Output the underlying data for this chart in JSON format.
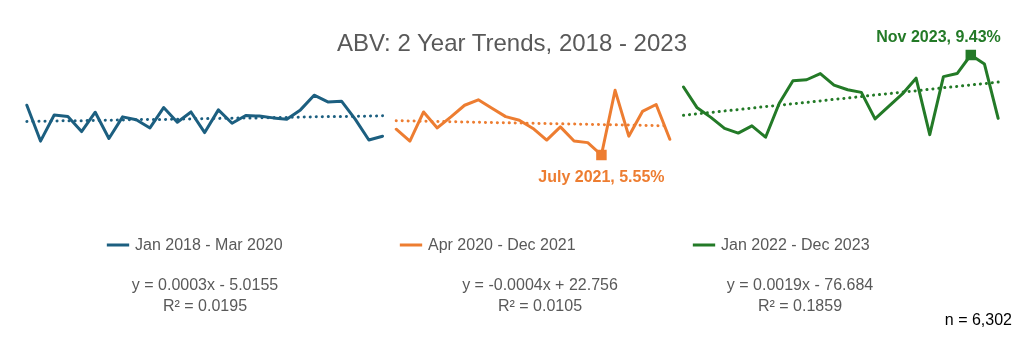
{
  "chart_data": {
    "type": "line",
    "title": "ABV: 2 Year Trends, 2018 - 2023",
    "categories": [
      null,
      null,
      null,
      null,
      null,
      null,
      null,
      null,
      null,
      null,
      null,
      null,
      null,
      null,
      null,
      null,
      null,
      null,
      null,
      null,
      null,
      null,
      null,
      null,
      null,
      null,
      null,
      null,
      null,
      null,
      null,
      null,
      null,
      null,
      null,
      null,
      null,
      null,
      null,
      null,
      null,
      null,
      null,
      null,
      null,
      null,
      null,
      null,
      null,
      null,
      null,
      null,
      null,
      null,
      null,
      null,
      null,
      null,
      null,
      null,
      null,
      null,
      null,
      null,
      null,
      null,
      null,
      null,
      null,
      null,
      null,
      null
    ],
    "series": [
      {
        "name": "Jan 2018 - Mar 2020",
        "color": "#1c5f80",
        "values": [
          7.48,
          6.09,
          7.1,
          7.04,
          6.46,
          7.21,
          6.19,
          7.03,
          6.92,
          6.6,
          7.39,
          6.82,
          7.22,
          6.42,
          7.3,
          6.78,
          7.08,
          7.06,
          6.99,
          6.94,
          7.3,
          7.87,
          7.61,
          7.64,
          6.94,
          6.13,
          6.28,
          null,
          null,
          null,
          null,
          null,
          null,
          null,
          null,
          null,
          null,
          null,
          null,
          null,
          null,
          null,
          null,
          null,
          null,
          null,
          null,
          null,
          null,
          null,
          null,
          null,
          null,
          null,
          null,
          null,
          null,
          null,
          null,
          null,
          null,
          null,
          null,
          null,
          null,
          null,
          null,
          null,
          null,
          null,
          null,
          null
        ]
      },
      {
        "name": "Apr 2020 - Dec 2021",
        "color": "#ed7d31",
        "values": [
          null,
          null,
          null,
          null,
          null,
          null,
          null,
          null,
          null,
          null,
          null,
          null,
          null,
          null,
          null,
          null,
          null,
          null,
          null,
          null,
          null,
          null,
          null,
          null,
          null,
          null,
          null,
          6.55,
          6.09,
          7.22,
          6.6,
          7.03,
          7.48,
          7.69,
          7.36,
          7.04,
          6.9,
          6.58,
          6.13,
          6.64,
          6.09,
          6.03,
          5.55,
          8.06,
          6.28,
          7.24,
          7.51,
          6.16,
          null,
          null,
          null,
          null,
          null,
          null,
          null,
          null,
          null,
          null,
          null,
          null,
          null,
          null,
          null,
          null,
          null,
          null,
          null,
          null,
          null,
          null,
          null,
          null
        ],
        "value_labels": [
          null,
          null,
          null,
          null,
          null,
          null,
          null,
          null,
          null,
          null,
          null,
          null,
          null,
          null,
          null,
          null,
          null,
          null,
          null,
          null,
          null,
          null,
          null,
          null,
          null,
          null,
          null,
          null,
          null,
          null,
          null,
          null,
          null,
          null,
          null,
          null,
          null,
          null,
          null,
          null,
          null,
          null,
          "July 2021, 5.55%",
          null,
          null,
          null,
          null,
          null,
          null,
          null,
          null,
          null,
          null,
          null,
          null,
          null,
          null,
          null,
          null,
          null,
          null,
          null,
          null,
          null,
          null,
          null,
          null,
          null,
          null,
          null,
          null,
          null
        ]
      },
      {
        "name": "Jan 2022 - Dec 2023",
        "color": "#237a27",
        "values": [
          null,
          null,
          null,
          null,
          null,
          null,
          null,
          null,
          null,
          null,
          null,
          null,
          null,
          null,
          null,
          null,
          null,
          null,
          null,
          null,
          null,
          null,
          null,
          null,
          null,
          null,
          null,
          null,
          null,
          null,
          null,
          null,
          null,
          null,
          null,
          null,
          null,
          null,
          null,
          null,
          null,
          null,
          null,
          null,
          null,
          null,
          null,
          null,
          8.19,
          7.38,
          7.01,
          6.58,
          6.4,
          6.68,
          6.24,
          7.56,
          8.43,
          8.47,
          8.71,
          8.26,
          8.08,
          7.98,
          6.95,
          7.44,
          7.92,
          8.53,
          6.34,
          8.59,
          8.71,
          9.43,
          9.08,
          6.97
        ],
        "value_labels": [
          null,
          null,
          null,
          null,
          null,
          null,
          null,
          null,
          null,
          null,
          null,
          null,
          null,
          null,
          null,
          null,
          null,
          null,
          null,
          null,
          null,
          null,
          null,
          null,
          null,
          null,
          null,
          null,
          null,
          null,
          null,
          null,
          null,
          null,
          null,
          null,
          null,
          null,
          null,
          null,
          null,
          null,
          null,
          null,
          null,
          null,
          null,
          null,
          null,
          null,
          null,
          null,
          null,
          null,
          null,
          null,
          null,
          null,
          null,
          null,
          null,
          null,
          null,
          null,
          null,
          null,
          null,
          null,
          null,
          "Nov 2023, 9.43%",
          null,
          null
        ]
      },
      {
        "color": "#1c5f80",
        "line_style": "dotted",
        "values": [
          6.85,
          6.86,
          6.87,
          6.88,
          6.88,
          6.89,
          6.9,
          6.91,
          6.92,
          6.93,
          6.93,
          6.94,
          6.95,
          6.96,
          6.97,
          6.98,
          6.99,
          6.99,
          7.0,
          7.01,
          7.02,
          7.03,
          7.04,
          7.04,
          7.05,
          7.06,
          7.07,
          null,
          null,
          null,
          null,
          null,
          null,
          null,
          null,
          null,
          null,
          null,
          null,
          null,
          null,
          null,
          null,
          null,
          null,
          null,
          null,
          null,
          null,
          null,
          null,
          null,
          null,
          null,
          null,
          null,
          null,
          null,
          null,
          null,
          null,
          null,
          null,
          null,
          null,
          null,
          null,
          null,
          null,
          null,
          null,
          null
        ]
      },
      {
        "color": "#ed7d31",
        "line_style": "dotted",
        "values": [
          null,
          null,
          null,
          null,
          null,
          null,
          null,
          null,
          null,
          null,
          null,
          null,
          null,
          null,
          null,
          null,
          null,
          null,
          null,
          null,
          null,
          null,
          null,
          null,
          null,
          null,
          null,
          6.88,
          6.87,
          6.86,
          6.85,
          6.84,
          6.83,
          6.82,
          6.81,
          6.8,
          6.79,
          6.78,
          6.77,
          6.76,
          6.75,
          6.74,
          6.73,
          6.72,
          6.71,
          6.7,
          6.69,
          6.68,
          null,
          null,
          null,
          null,
          null,
          null,
          null,
          null,
          null,
          null,
          null,
          null,
          null,
          null,
          null,
          null,
          null,
          null,
          null,
          null,
          null,
          null,
          null,
          null
        ]
      },
      {
        "color": "#237a27",
        "line_style": "dotted",
        "values": [
          null,
          null,
          null,
          null,
          null,
          null,
          null,
          null,
          null,
          null,
          null,
          null,
          null,
          null,
          null,
          null,
          null,
          null,
          null,
          null,
          null,
          null,
          null,
          null,
          null,
          null,
          null,
          null,
          null,
          null,
          null,
          null,
          null,
          null,
          null,
          null,
          null,
          null,
          null,
          null,
          null,
          null,
          null,
          null,
          null,
          null,
          null,
          null,
          7.09,
          7.15,
          7.2,
          7.26,
          7.31,
          7.37,
          7.43,
          7.48,
          7.54,
          7.59,
          7.65,
          7.71,
          7.76,
          7.82,
          7.88,
          7.93,
          7.99,
          8.04,
          8.1,
          8.16,
          8.21,
          8.27,
          8.32,
          8.38
        ]
      }
    ],
    "line_style": "solid",
    "grid": false,
    "legend": "bottom",
    "tick_labels": false,
    "annotations": [
      "y = 0.0003x - 5.0155",
      "R² = 0.0195",
      "y = -0.0004x + 22.756",
      "R² = 0.0105",
      "y = 0.0019x - 76.684",
      "R² = 0.1859",
      "n = 6,302"
    ]
  }
}
